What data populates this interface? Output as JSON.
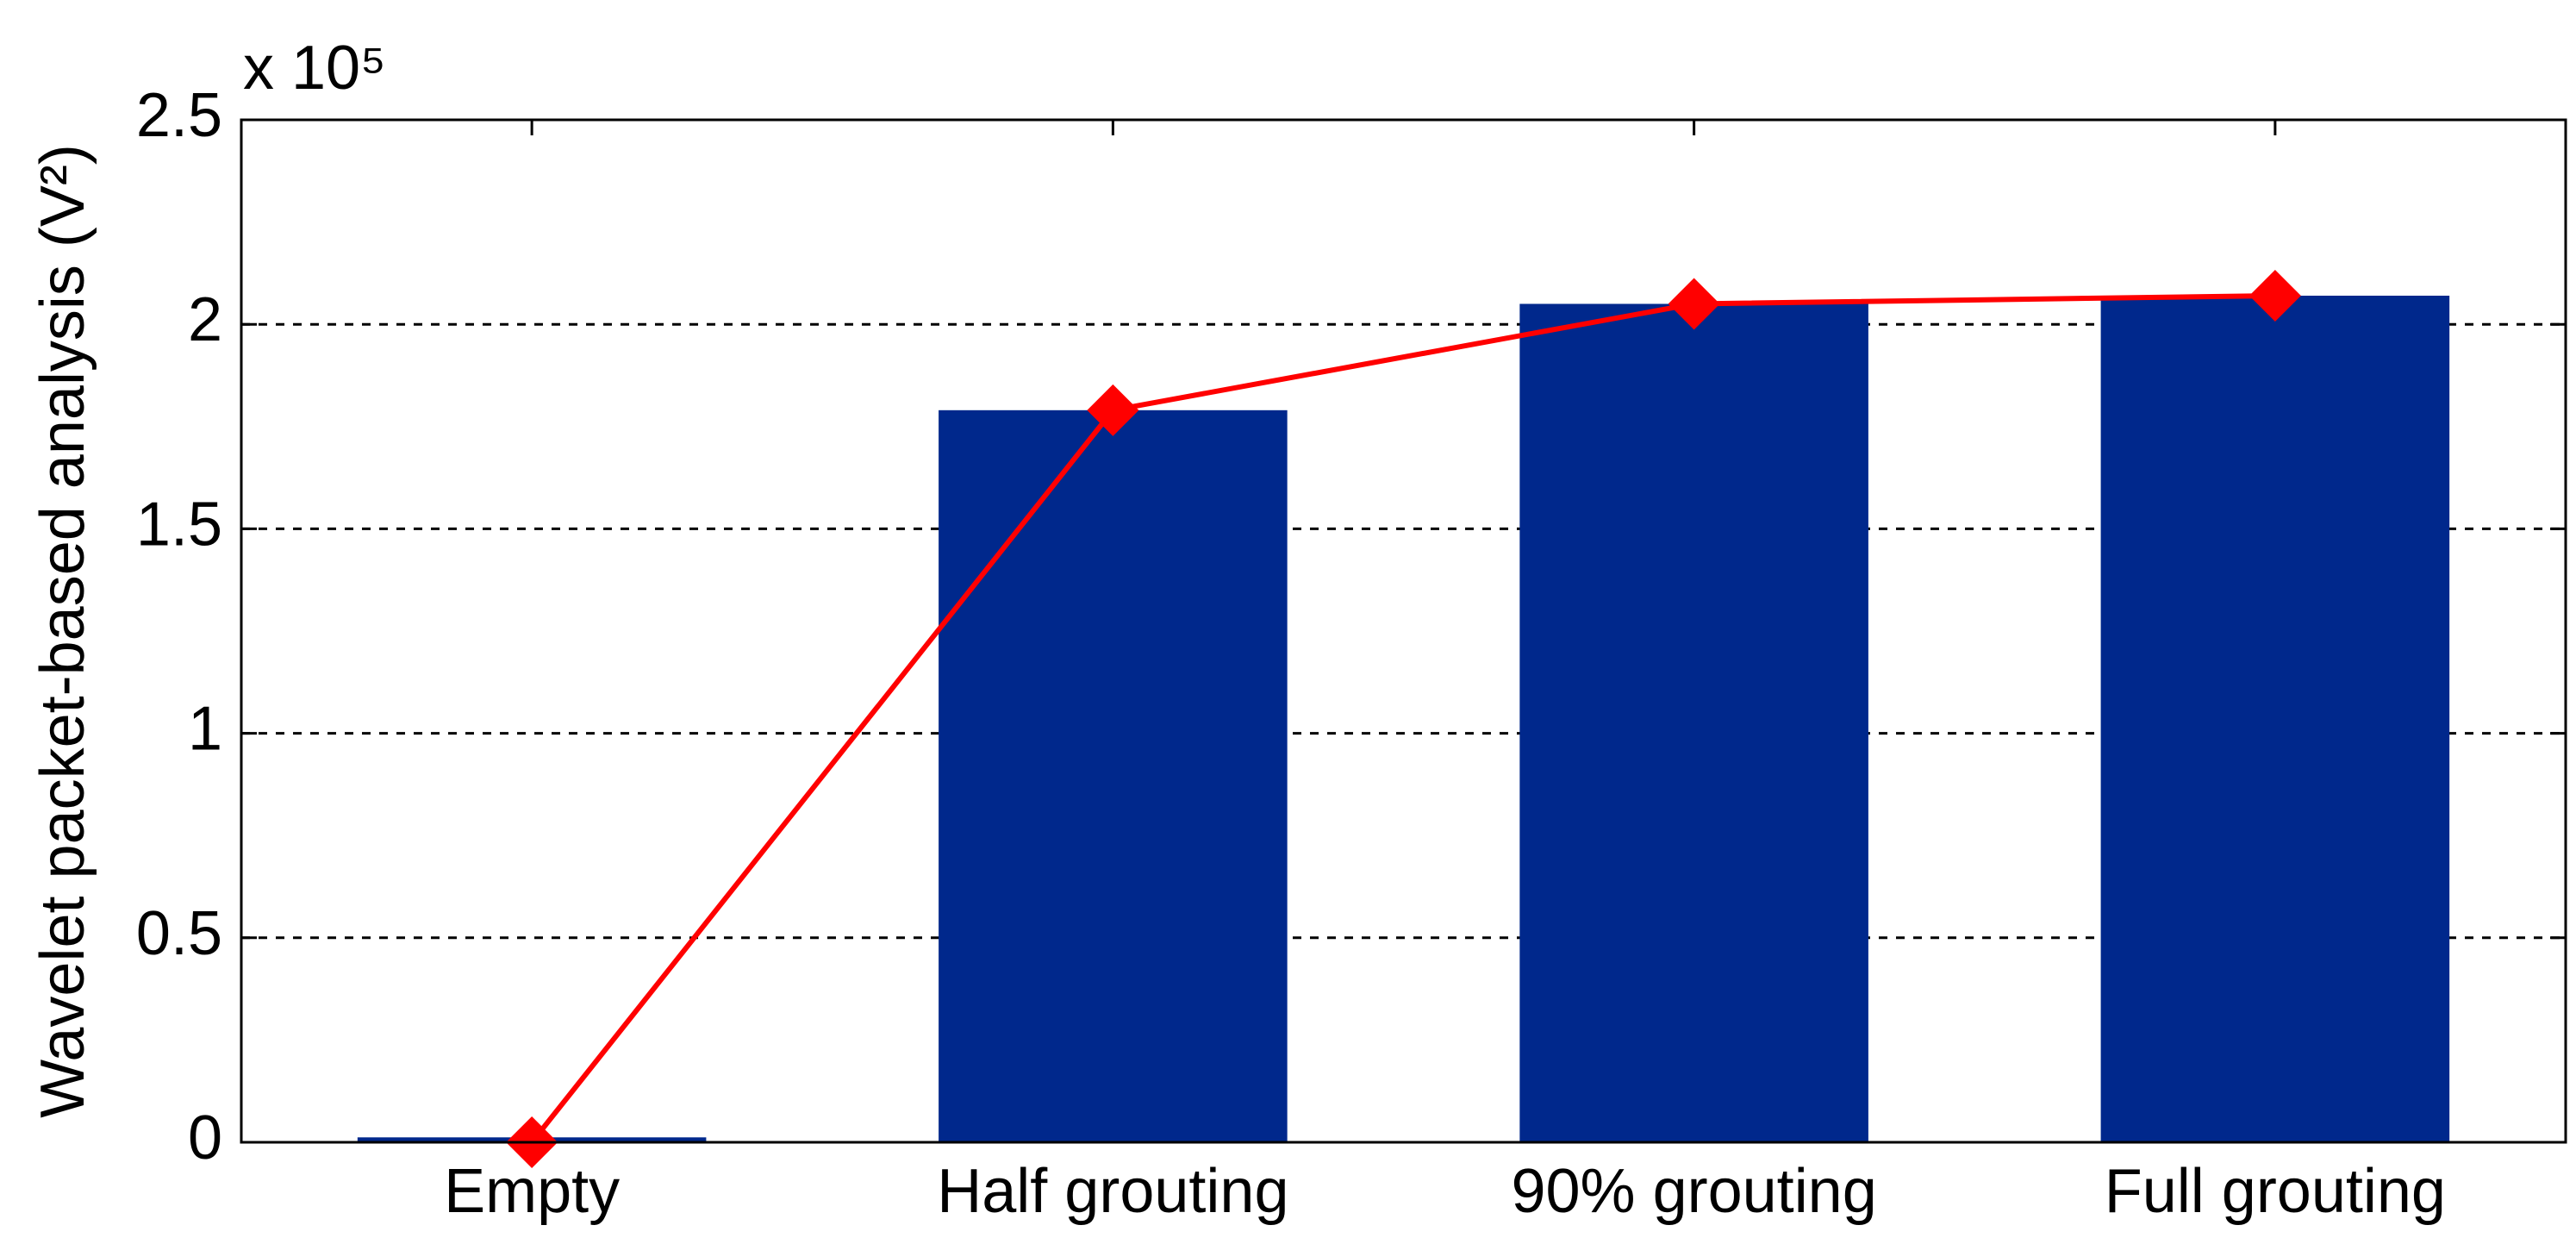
{
  "chart_data": {
    "type": "bar",
    "ylabel": "Wavelet packet-based  analysis (V²)",
    "y_multiplier": "x 10⁵",
    "categories": [
      "Empty",
      "Half grouting",
      "90% grouting",
      "Full grouting"
    ],
    "series": [
      {
        "type": "bar",
        "color": "#00288c",
        "values": [
          0.012,
          1.79,
          2.05,
          2.07
        ]
      },
      {
        "type": "line",
        "color": "#ff0000",
        "marker": "diamond",
        "values": [
          0,
          1.79,
          2.05,
          2.07
        ]
      }
    ],
    "ylim": [
      0,
      2.5
    ],
    "yticks": [
      0,
      0.5,
      1,
      1.5,
      2,
      2.5
    ],
    "grid": true
  }
}
